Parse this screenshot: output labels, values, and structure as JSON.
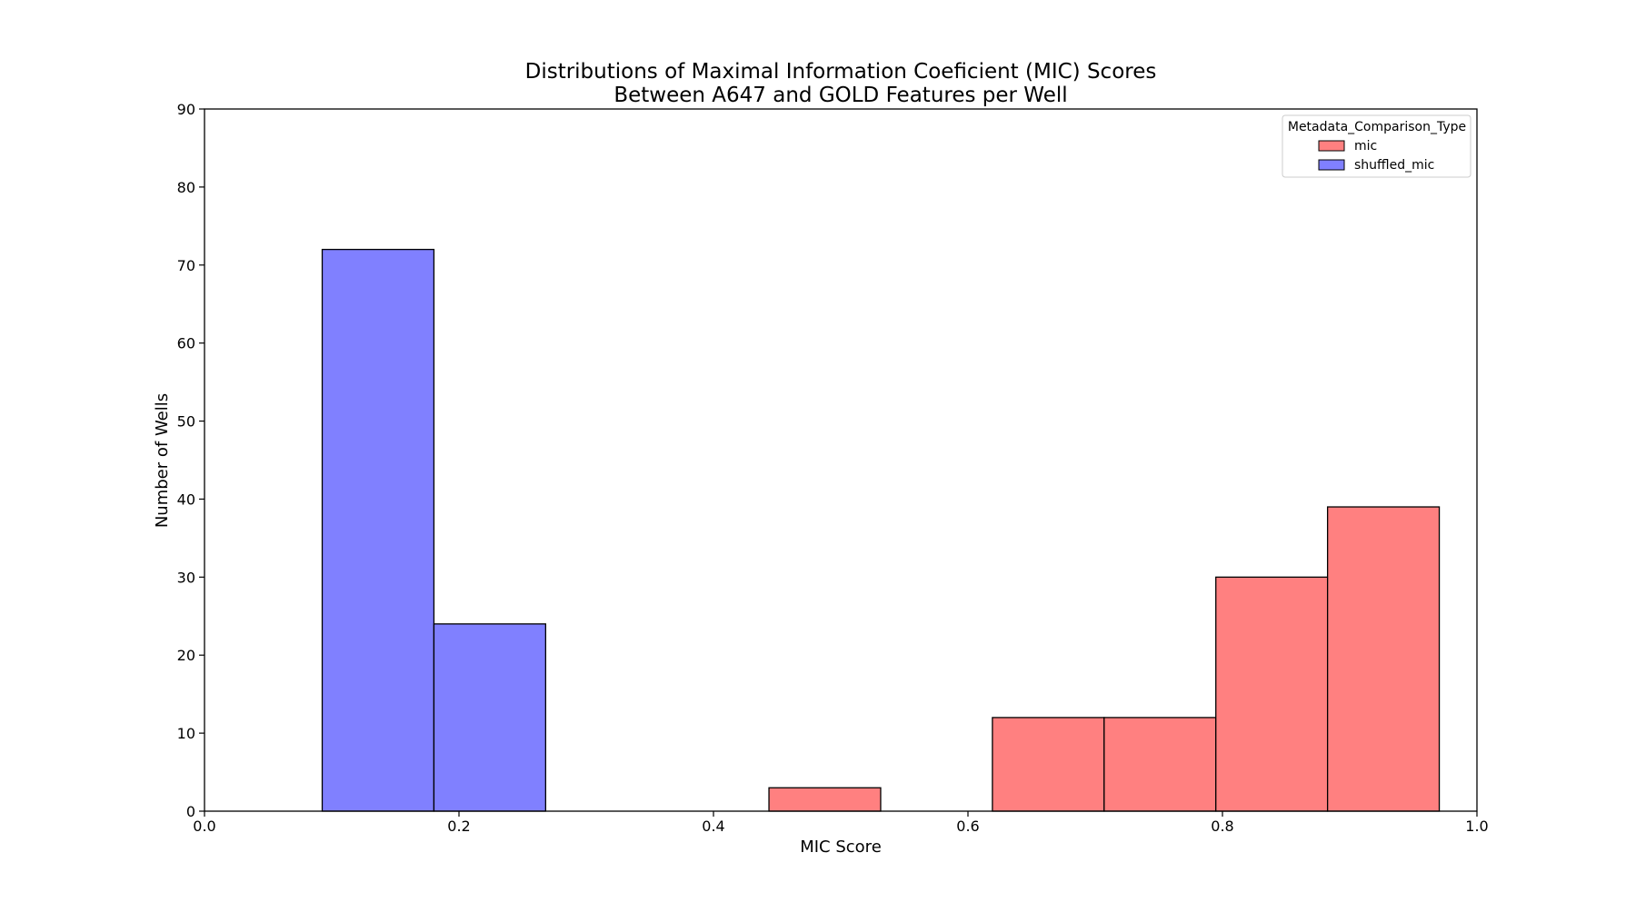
{
  "chart_data": {
    "type": "bar",
    "title": [
      "Distributions of Maximal Information Coeficient (MIC) Scores",
      "Between A647 and GOLD Features per Well"
    ],
    "xlabel": "MIC Score",
    "ylabel": "Number of Wells",
    "xlim": [
      0.0,
      1.0
    ],
    "ylim": [
      0,
      90
    ],
    "xticks": [
      "0.0",
      "0.2",
      "0.4",
      "0.6",
      "0.8",
      "1.0"
    ],
    "yticks": [
      "0",
      "10",
      "20",
      "30",
      "40",
      "50",
      "60",
      "70",
      "80",
      "90"
    ],
    "grid": false,
    "legend": {
      "title": "Metadata_Comparison_Type",
      "placement": "top-right"
    },
    "bin_edges": [
      0.0925,
      0.1803,
      0.2681,
      0.3559,
      0.4436,
      0.5314,
      0.6192,
      0.707,
      0.7948,
      0.8826,
      0.9704
    ],
    "series": [
      {
        "name": "mic",
        "color": "#ff8080",
        "values": [
          0,
          0,
          0,
          0,
          3,
          0,
          12,
          12,
          30,
          39
        ]
      },
      {
        "name": "shuffled_mic",
        "color": "#8080ff",
        "values": [
          72,
          24,
          0,
          0,
          0,
          0,
          0,
          0,
          0,
          0
        ]
      }
    ]
  }
}
